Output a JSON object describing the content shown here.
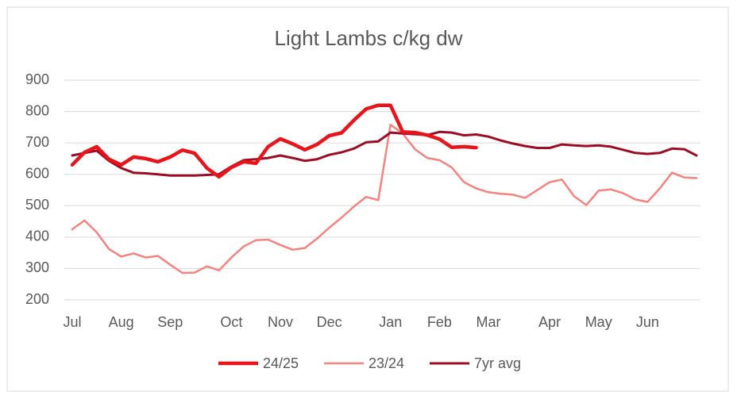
{
  "chart_data": {
    "type": "line",
    "title": "Light Lambs c/kg dw",
    "categories": [
      "Jul",
      null,
      null,
      null,
      "Aug",
      null,
      null,
      null,
      "Sep",
      null,
      null,
      null,
      null,
      "Oct",
      null,
      null,
      null,
      "Nov",
      null,
      null,
      null,
      "Dec",
      null,
      null,
      null,
      null,
      "Jan",
      null,
      null,
      null,
      "Feb",
      null,
      null,
      null,
      "Mar",
      null,
      null,
      null,
      null,
      "Apr",
      null,
      null,
      null,
      "May",
      null,
      null,
      null,
      "Jun",
      null,
      null,
      null,
      null
    ],
    "series": [
      {
        "name": "24/25",
        "color": "#e8141b",
        "width": 4.5,
        "values": [
          630,
          670,
          688,
          648,
          630,
          655,
          650,
          640,
          655,
          677,
          667,
          620,
          592,
          622,
          640,
          635,
          688,
          713,
          697,
          678,
          695,
          723,
          732,
          772,
          808,
          820,
          820,
          735,
          733,
          725,
          712,
          686,
          688,
          685,
          null,
          null,
          null,
          null,
          null,
          null,
          null,
          null,
          null,
          null,
          null,
          null,
          null,
          null,
          null,
          null,
          null,
          null
        ]
      },
      {
        "name": "23/24",
        "color": "#f4837f",
        "width": 2.5,
        "values": [
          425,
          453,
          415,
          362,
          338,
          348,
          335,
          340,
          312,
          286,
          287,
          307,
          294,
          335,
          370,
          390,
          392,
          375,
          360,
          365,
          395,
          430,
          462,
          497,
          528,
          518,
          758,
          730,
          680,
          652,
          645,
          622,
          575,
          555,
          543,
          538,
          535,
          525,
          550,
          575,
          583,
          530,
          502,
          548,
          552,
          540,
          520,
          512,
          555,
          605,
          590,
          588
        ]
      },
      {
        "name": "7yr avg",
        "color": "#9b0d24",
        "width": 3,
        "values": [
          660,
          668,
          675,
          643,
          620,
          605,
          603,
          600,
          596,
          596,
          596,
          598,
          600,
          625,
          645,
          648,
          652,
          660,
          652,
          643,
          648,
          662,
          670,
          682,
          702,
          705,
          733,
          730,
          728,
          725,
          735,
          733,
          724,
          727,
          720,
          708,
          698,
          690,
          684,
          684,
          695,
          692,
          690,
          692,
          688,
          678,
          668,
          665,
          668,
          682,
          680,
          660
        ]
      }
    ],
    "ylim": [
      200,
      900
    ],
    "yticks": [
      200,
      300,
      400,
      500,
      600,
      700,
      800,
      900
    ],
    "grid": true,
    "legend": "bottom"
  }
}
